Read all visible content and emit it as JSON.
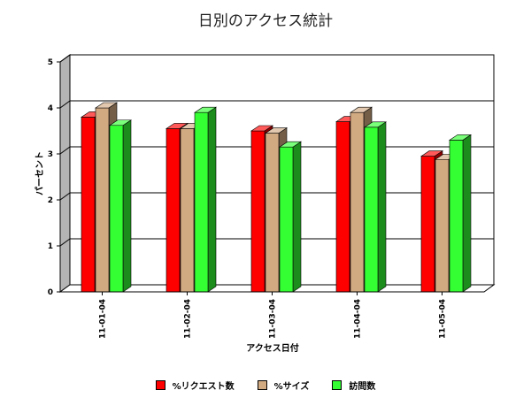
{
  "chart_data": {
    "type": "bar",
    "title": "日別のアクセス統計",
    "xlabel": "アクセス日付",
    "ylabel": "パーセント",
    "ylim": [
      0,
      5
    ],
    "yticks": [
      0,
      1,
      2,
      3,
      4,
      5
    ],
    "grid": true,
    "legend_position": "bottom",
    "categories": [
      "11-01-04",
      "11-02-04",
      "11-03-04",
      "11-04-04",
      "11-05-04"
    ],
    "series": [
      {
        "name": "%リクエスト数",
        "color": "#ff0000",
        "values": [
          3.8,
          3.55,
          3.5,
          3.7,
          2.95
        ]
      },
      {
        "name": "%サイズ",
        "color": "#d2aa82",
        "values": [
          4.0,
          3.55,
          3.45,
          3.9,
          2.88
        ]
      },
      {
        "name": "訪問数",
        "color": "#33ff33",
        "values": [
          3.62,
          3.9,
          3.15,
          3.58,
          3.3
        ]
      }
    ]
  }
}
